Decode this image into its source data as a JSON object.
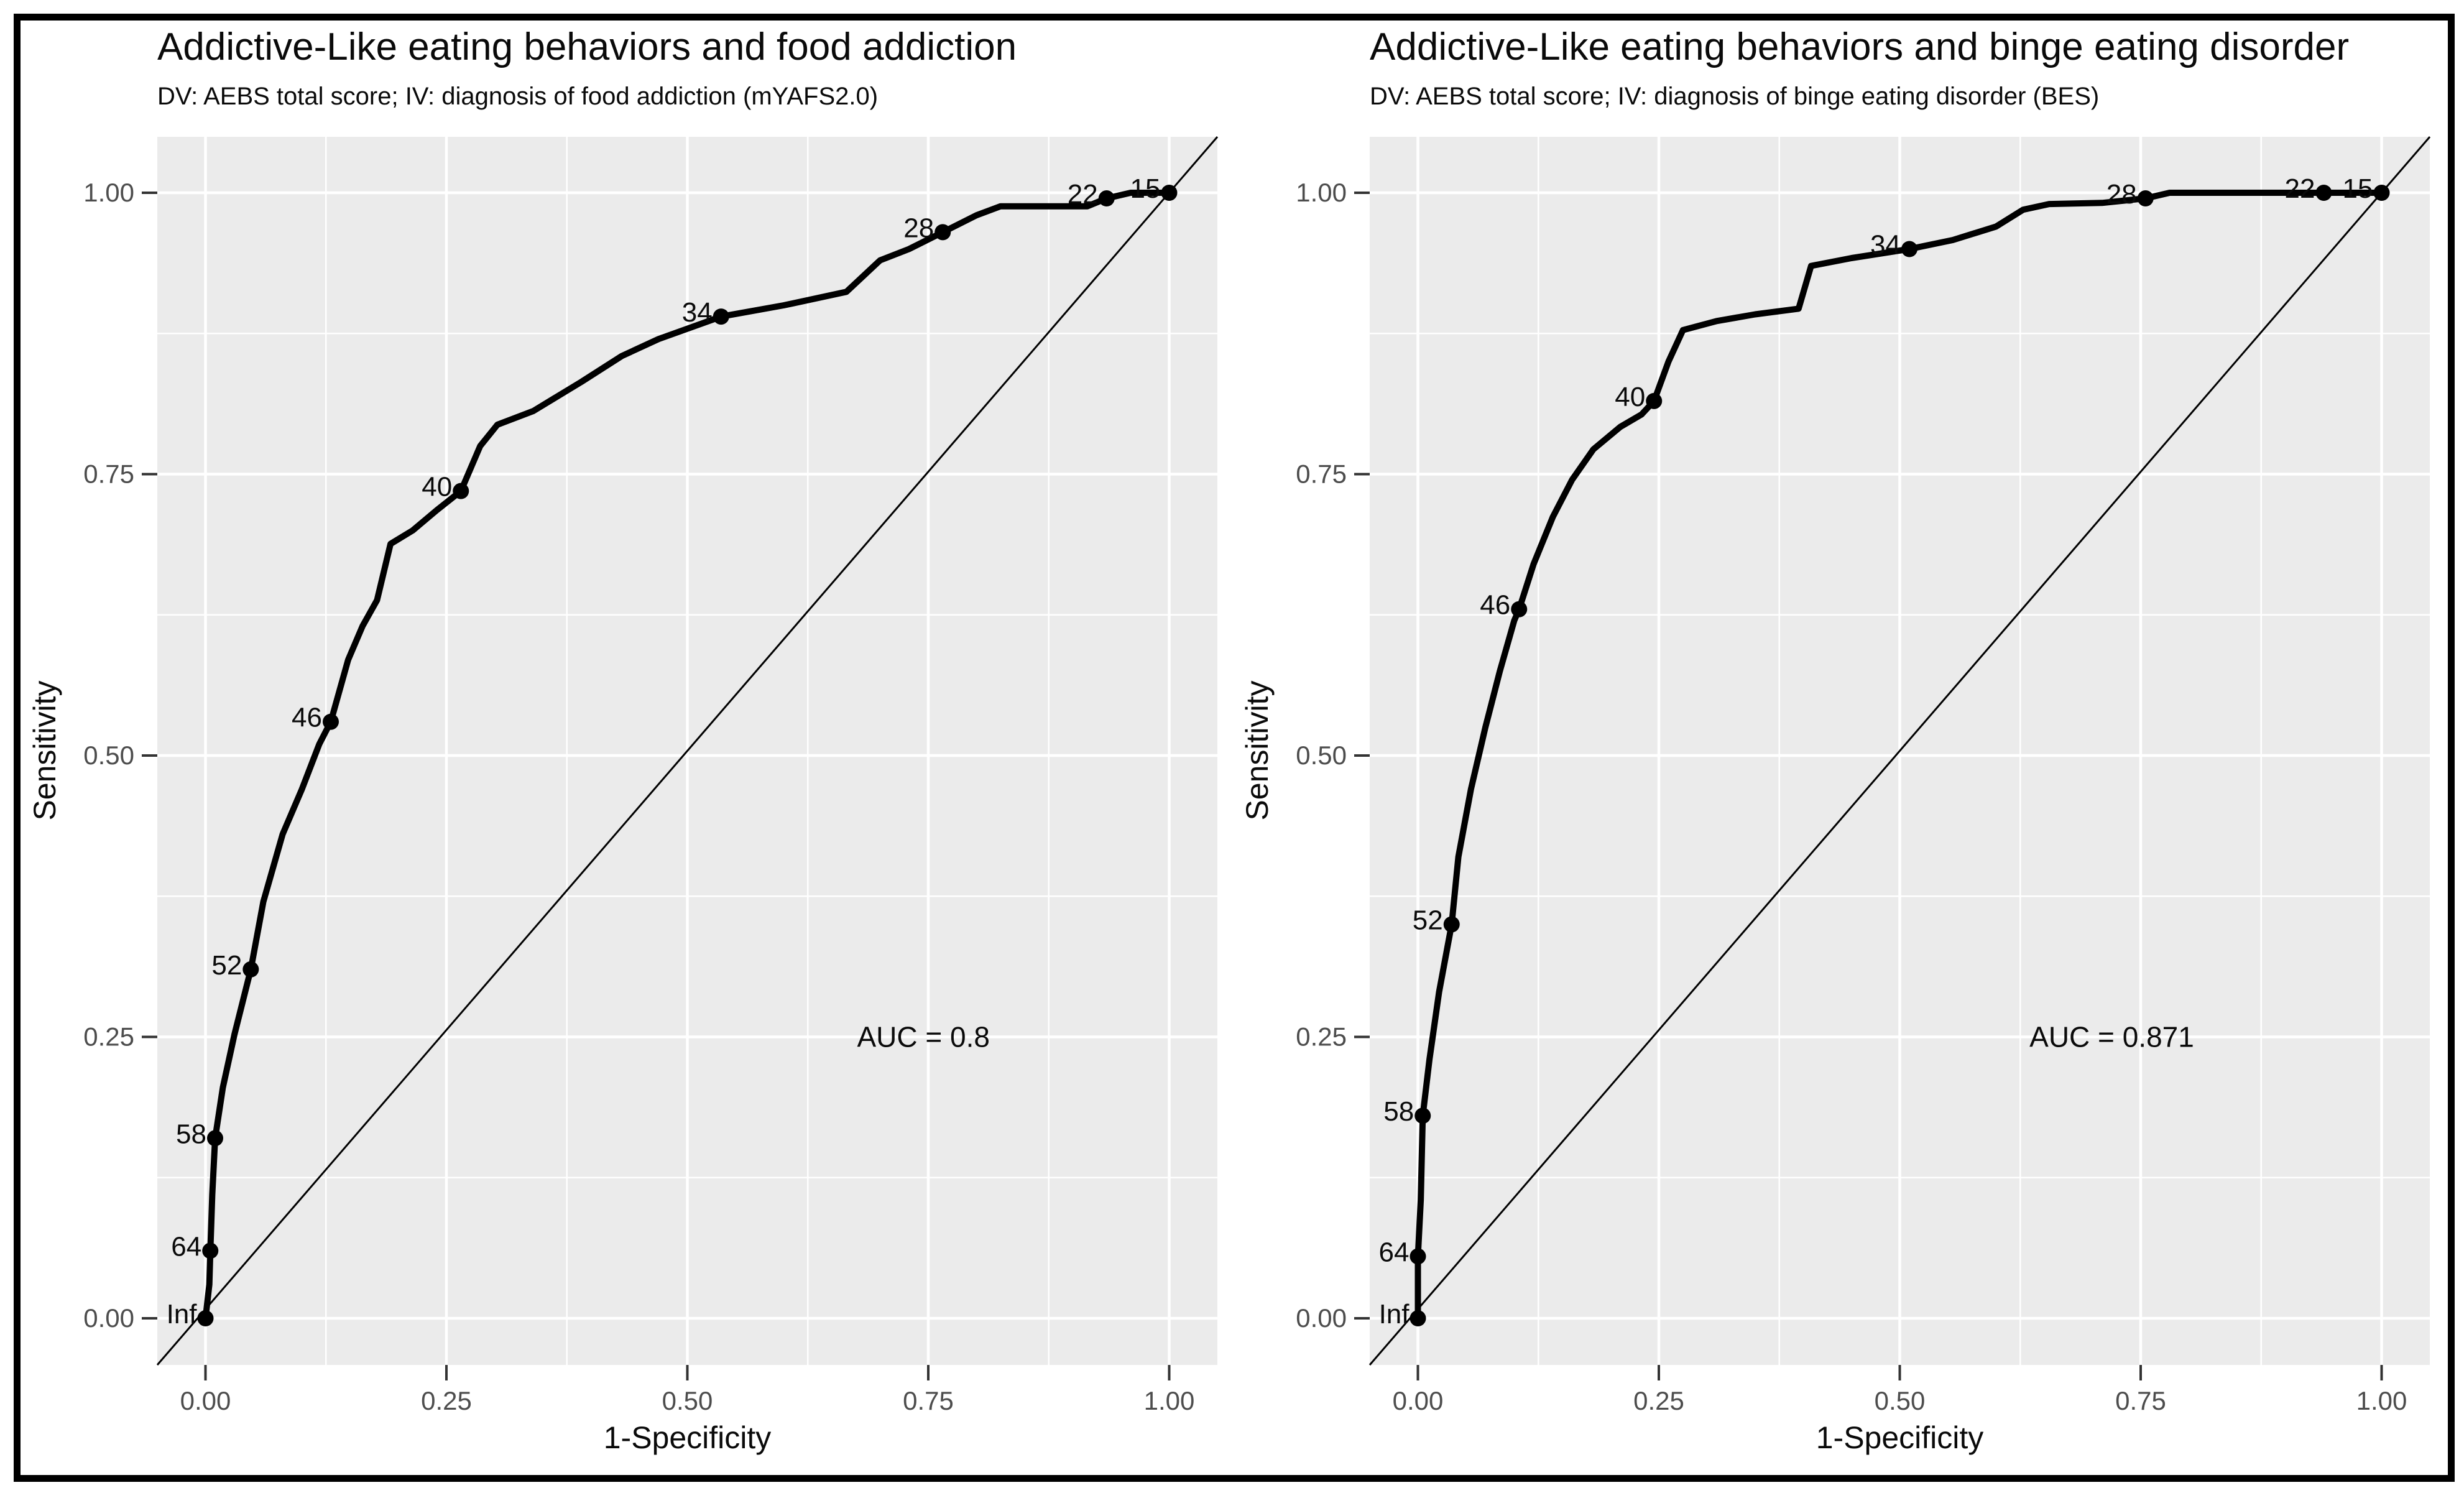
{
  "figure": {
    "background": "#ffffff",
    "border_color": "#000000"
  },
  "style": {
    "panel_bg": "#ebebeb",
    "grid_color": "#ffffff",
    "tick_color": "#333333",
    "tick_label_color": "#4d4d4d",
    "text_color": "#0a0a0a",
    "curve_color": "#000000"
  },
  "chart_data": [
    {
      "type": "line",
      "chart_kind": "ROC curve",
      "title": "Addictive-Like eating behaviors and food addiction",
      "subtitle": "DV: AEBS total score; IV: diagnosis of food addiction (mYAFS2.0)",
      "xlabel": "1-Specificity",
      "ylabel": "Sensitivity",
      "xlim": [
        0,
        1
      ],
      "ylim": [
        0,
        1
      ],
      "x_tick_values": [
        0,
        0.25,
        0.5,
        0.75,
        1
      ],
      "x_tick_labels": [
        "0.00",
        "0.25",
        "0.50",
        "0.75",
        "1.00"
      ],
      "y_tick_values": [
        0,
        0.25,
        0.5,
        0.75,
        1
      ],
      "y_tick_labels": [
        "0.00",
        "0.25",
        "0.50",
        "0.75",
        "1.00"
      ],
      "grid": {
        "major": [
          0,
          0.25,
          0.5,
          0.75,
          1
        ],
        "minor": [
          0.125,
          0.375,
          0.625,
          0.875
        ]
      },
      "legend": "none",
      "diagonal_reference": true,
      "auc": {
        "label": "AUC = 0.8",
        "x": 0.745,
        "y": 0.25
      },
      "curve": [
        [
          0.0,
          0.0
        ],
        [
          0.004,
          0.03
        ],
        [
          0.005,
          0.06
        ],
        [
          0.007,
          0.11
        ],
        [
          0.01,
          0.16
        ],
        [
          0.018,
          0.205
        ],
        [
          0.03,
          0.252
        ],
        [
          0.047,
          0.31
        ],
        [
          0.06,
          0.37
        ],
        [
          0.08,
          0.43
        ],
        [
          0.1,
          0.47
        ],
        [
          0.118,
          0.51
        ],
        [
          0.13,
          0.53
        ],
        [
          0.148,
          0.585
        ],
        [
          0.163,
          0.615
        ],
        [
          0.178,
          0.638
        ],
        [
          0.192,
          0.688
        ],
        [
          0.215,
          0.7
        ],
        [
          0.24,
          0.718
        ],
        [
          0.265,
          0.735
        ],
        [
          0.285,
          0.775
        ],
        [
          0.303,
          0.794
        ],
        [
          0.34,
          0.806
        ],
        [
          0.39,
          0.832
        ],
        [
          0.432,
          0.855
        ],
        [
          0.47,
          0.87
        ],
        [
          0.535,
          0.89
        ],
        [
          0.6,
          0.9
        ],
        [
          0.665,
          0.912
        ],
        [
          0.7,
          0.94
        ],
        [
          0.73,
          0.95
        ],
        [
          0.765,
          0.965
        ],
        [
          0.8,
          0.98
        ],
        [
          0.825,
          0.988
        ],
        [
          0.915,
          0.988
        ],
        [
          0.935,
          0.995
        ],
        [
          0.96,
          1.0
        ],
        [
          1.0,
          1.0
        ]
      ],
      "points": [
        {
          "label": "Inf",
          "x": 0.0,
          "y": 0.0
        },
        {
          "label": "64",
          "x": 0.005,
          "y": 0.06
        },
        {
          "label": "58",
          "x": 0.01,
          "y": 0.16
        },
        {
          "label": "52",
          "x": 0.047,
          "y": 0.31
        },
        {
          "label": "46",
          "x": 0.13,
          "y": 0.53
        },
        {
          "label": "40",
          "x": 0.265,
          "y": 0.735
        },
        {
          "label": "34",
          "x": 0.535,
          "y": 0.89
        },
        {
          "label": "28",
          "x": 0.765,
          "y": 0.965
        },
        {
          "label": "22",
          "x": 0.935,
          "y": 0.995
        },
        {
          "label": "15",
          "x": 1.0,
          "y": 1.0
        }
      ]
    },
    {
      "type": "line",
      "chart_kind": "ROC curve",
      "title": "Addictive-Like eating behaviors and binge eating disorder",
      "subtitle": "DV: AEBS total score; IV: diagnosis of binge eating disorder (BES)",
      "xlabel": "1-Specificity",
      "ylabel": "Sensitivity",
      "xlim": [
        0,
        1
      ],
      "ylim": [
        0,
        1
      ],
      "x_tick_values": [
        0,
        0.25,
        0.5,
        0.75,
        1
      ],
      "x_tick_labels": [
        "0.00",
        "0.25",
        "0.50",
        "0.75",
        "1.00"
      ],
      "y_tick_values": [
        0,
        0.25,
        0.5,
        0.75,
        1
      ],
      "y_tick_labels": [
        "0.00",
        "0.25",
        "0.50",
        "0.75",
        "1.00"
      ],
      "grid": {
        "major": [
          0,
          0.25,
          0.5,
          0.75,
          1
        ],
        "minor": [
          0.125,
          0.375,
          0.625,
          0.875
        ]
      },
      "legend": "none",
      "diagonal_reference": true,
      "auc": {
        "label": "AUC = 0.871",
        "x": 0.72,
        "y": 0.25
      },
      "curve": [
        [
          0.0,
          0.0
        ],
        [
          0.0,
          0.055
        ],
        [
          0.003,
          0.105
        ],
        [
          0.005,
          0.18
        ],
        [
          0.012,
          0.23
        ],
        [
          0.022,
          0.29
        ],
        [
          0.035,
          0.35
        ],
        [
          0.042,
          0.41
        ],
        [
          0.055,
          0.47
        ],
        [
          0.07,
          0.525
        ],
        [
          0.085,
          0.575
        ],
        [
          0.1,
          0.62
        ],
        [
          0.105,
          0.63
        ],
        [
          0.12,
          0.67
        ],
        [
          0.14,
          0.712
        ],
        [
          0.16,
          0.745
        ],
        [
          0.182,
          0.772
        ],
        [
          0.21,
          0.792
        ],
        [
          0.232,
          0.803
        ],
        [
          0.245,
          0.815
        ],
        [
          0.26,
          0.85
        ],
        [
          0.275,
          0.878
        ],
        [
          0.31,
          0.886
        ],
        [
          0.35,
          0.892
        ],
        [
          0.395,
          0.897
        ],
        [
          0.408,
          0.935
        ],
        [
          0.45,
          0.942
        ],
        [
          0.51,
          0.95
        ],
        [
          0.555,
          0.958
        ],
        [
          0.6,
          0.97
        ],
        [
          0.628,
          0.985
        ],
        [
          0.655,
          0.99
        ],
        [
          0.71,
          0.991
        ],
        [
          0.755,
          0.995
        ],
        [
          0.78,
          1.0
        ],
        [
          0.94,
          1.0
        ],
        [
          1.0,
          1.0
        ]
      ],
      "points": [
        {
          "label": "Inf",
          "x": 0.0,
          "y": 0.0
        },
        {
          "label": "64",
          "x": 0.0,
          "y": 0.055
        },
        {
          "label": "58",
          "x": 0.005,
          "y": 0.18
        },
        {
          "label": "52",
          "x": 0.035,
          "y": 0.35
        },
        {
          "label": "46",
          "x": 0.105,
          "y": 0.63
        },
        {
          "label": "40",
          "x": 0.245,
          "y": 0.815
        },
        {
          "label": "34",
          "x": 0.51,
          "y": 0.95
        },
        {
          "label": "28",
          "x": 0.755,
          "y": 0.995
        },
        {
          "label": "22",
          "x": 0.94,
          "y": 1.0
        },
        {
          "label": "15",
          "x": 1.0,
          "y": 1.0
        }
      ]
    }
  ]
}
